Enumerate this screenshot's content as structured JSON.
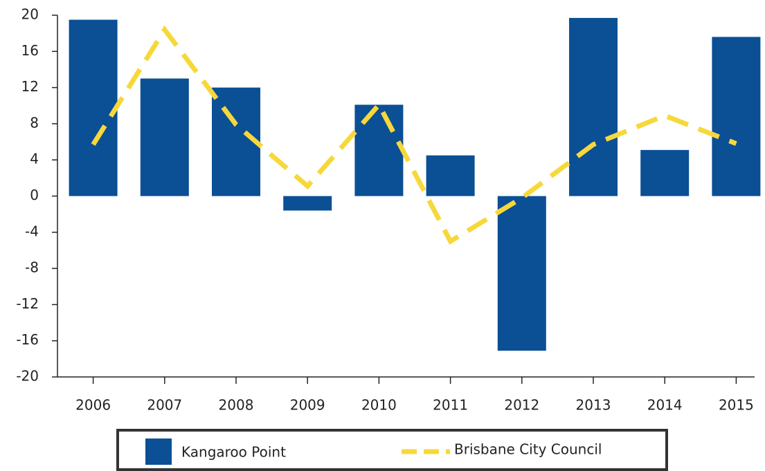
{
  "chart_data": {
    "type": "bar",
    "categories": [
      "2006",
      "2007",
      "2008",
      "2009",
      "2010",
      "2011",
      "2012",
      "2013",
      "2014",
      "2015"
    ],
    "series": [
      {
        "name": "Kangaroo Point",
        "type": "bar",
        "color": "#0b4f95",
        "values": [
          19.5,
          13.0,
          12.0,
          -1.6,
          10.1,
          4.5,
          -17.1,
          19.7,
          5.1,
          17.6
        ]
      },
      {
        "name": "Brisbane City Council",
        "type": "line",
        "color": "#f7d83a",
        "values": [
          5.7,
          18.4,
          7.9,
          1.1,
          10.1,
          -5.0,
          -0.2,
          5.7,
          8.9,
          5.8
        ]
      }
    ],
    "ylim": [
      -20,
      20
    ],
    "yticks": [
      -20,
      -16,
      -12,
      -8,
      -4,
      0,
      4,
      8,
      12,
      16,
      20
    ],
    "grid": false
  }
}
